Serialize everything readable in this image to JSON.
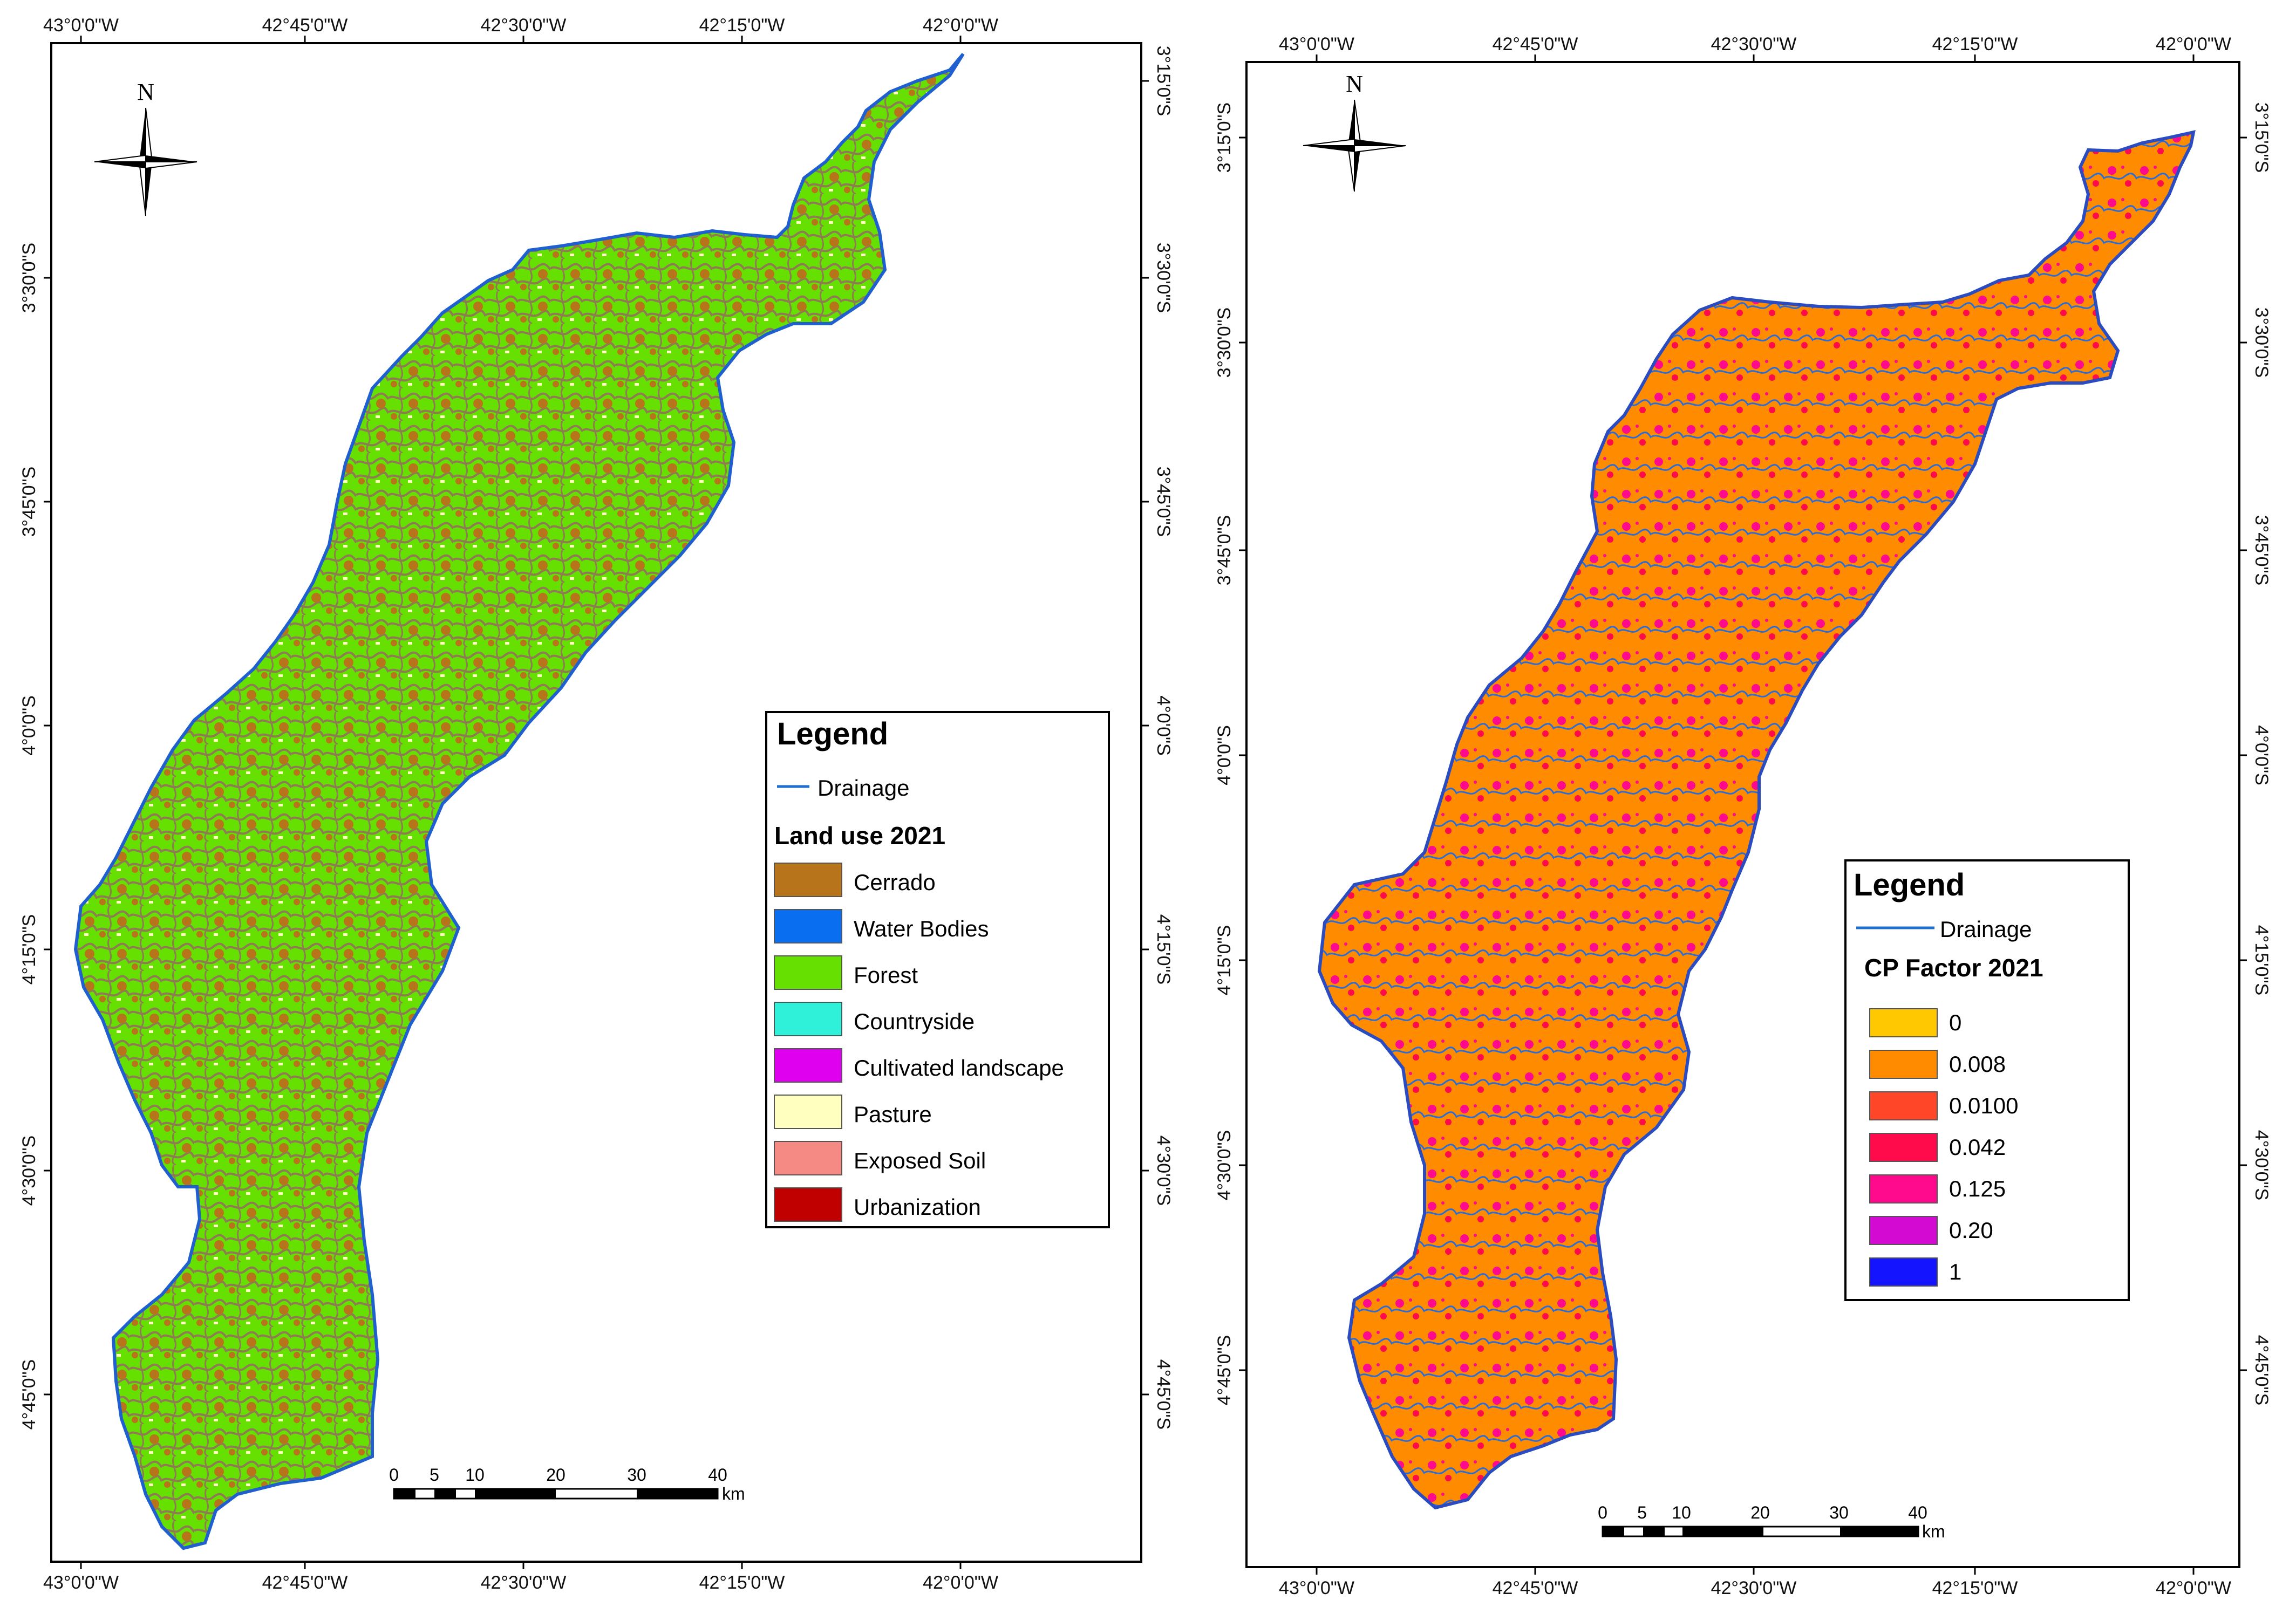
{
  "map_left": {
    "top_lon": [
      "43°0'0\"W",
      "42°45'0\"W",
      "42°30'0\"W",
      "42°15'0\"W",
      "42°0'0\"W"
    ],
    "bottom_lon": [
      "43°0'0\"W",
      "42°45'0\"W",
      "42°30'0\"W",
      "42°15'0\"W",
      "42°0'0\"W"
    ],
    "left_lat": [
      "3°30'0\"S",
      "3°45'0\"S",
      "4°0'0\"S",
      "4°15'0\"S",
      "4°30'0\"S",
      "4°45'0\"S"
    ],
    "right_lat": [
      "3°15'0\"S",
      "3°30'0\"S",
      "3°45'0\"S",
      "4°0'0\"S",
      "4°15'0\"S",
      "4°30'0\"S",
      "4°45'0\"S"
    ],
    "north": "N",
    "legend": {
      "title": "Legend",
      "drainage": "Drainage",
      "subtitle": "Land use 2021",
      "items": [
        {
          "label": "Cerrado",
          "color": "#b8741a"
        },
        {
          "label": "Water Bodies",
          "color": "#0a6ef0"
        },
        {
          "label": "Forest",
          "color": "#66e000"
        },
        {
          "label": "Countryside",
          "color": "#2ff0d8"
        },
        {
          "label": "Cultivated landscape",
          "color": "#e000f0"
        },
        {
          "label": "Pasture",
          "color": "#ffffc0"
        },
        {
          "label": "Exposed Soil",
          "color": "#f58a85"
        },
        {
          "label": "Urbanization",
          "color": "#c00000"
        }
      ]
    },
    "scale": {
      "ticks": [
        "0",
        "5",
        "10",
        "20",
        "30",
        "40"
      ],
      "unit": "km"
    }
  },
  "map_right": {
    "top_lon": [
      "43°0'0\"W",
      "42°45'0\"W",
      "42°30'0\"W",
      "42°15'0\"W",
      "42°0'0\"W"
    ],
    "bottom_lon": [
      "43°0'0\"W",
      "42°45'0\"W",
      "42°30'0\"W",
      "42°15'0\"W",
      "42°0'0\"W"
    ],
    "left_lat": [
      "3°15'0\"S",
      "3°30'0\"S",
      "3°45'0\"S",
      "4°0'0\"S",
      "4°15'0\"S",
      "4°30'0\"S",
      "4°45'0\"S"
    ],
    "right_lat": [
      "3°15'0\"S",
      "3°30'0\"S",
      "3°45'0\"S",
      "4°0'0\"S",
      "4°15'0\"S",
      "4°30'0\"S",
      "4°45'0\"S"
    ],
    "north": "N",
    "legend": {
      "title": "Legend",
      "drainage": "Drainage",
      "subtitle": "CP Factor 2021",
      "items": [
        {
          "label": "0",
          "color": "#ffc800"
        },
        {
          "label": "0.008",
          "color": "#ff8c00"
        },
        {
          "label": "0.0100",
          "color": "#ff4628"
        },
        {
          "label": "0.042",
          "color": "#ff0a4a"
        },
        {
          "label": "0.125",
          "color": "#ff0a8c"
        },
        {
          "label": "0.20",
          "color": "#d20ad2"
        },
        {
          "label": "1",
          "color": "#1414ff"
        }
      ]
    },
    "scale": {
      "ticks": [
        "0",
        "5",
        "10",
        "20",
        "30",
        "40"
      ],
      "unit": "km"
    }
  }
}
